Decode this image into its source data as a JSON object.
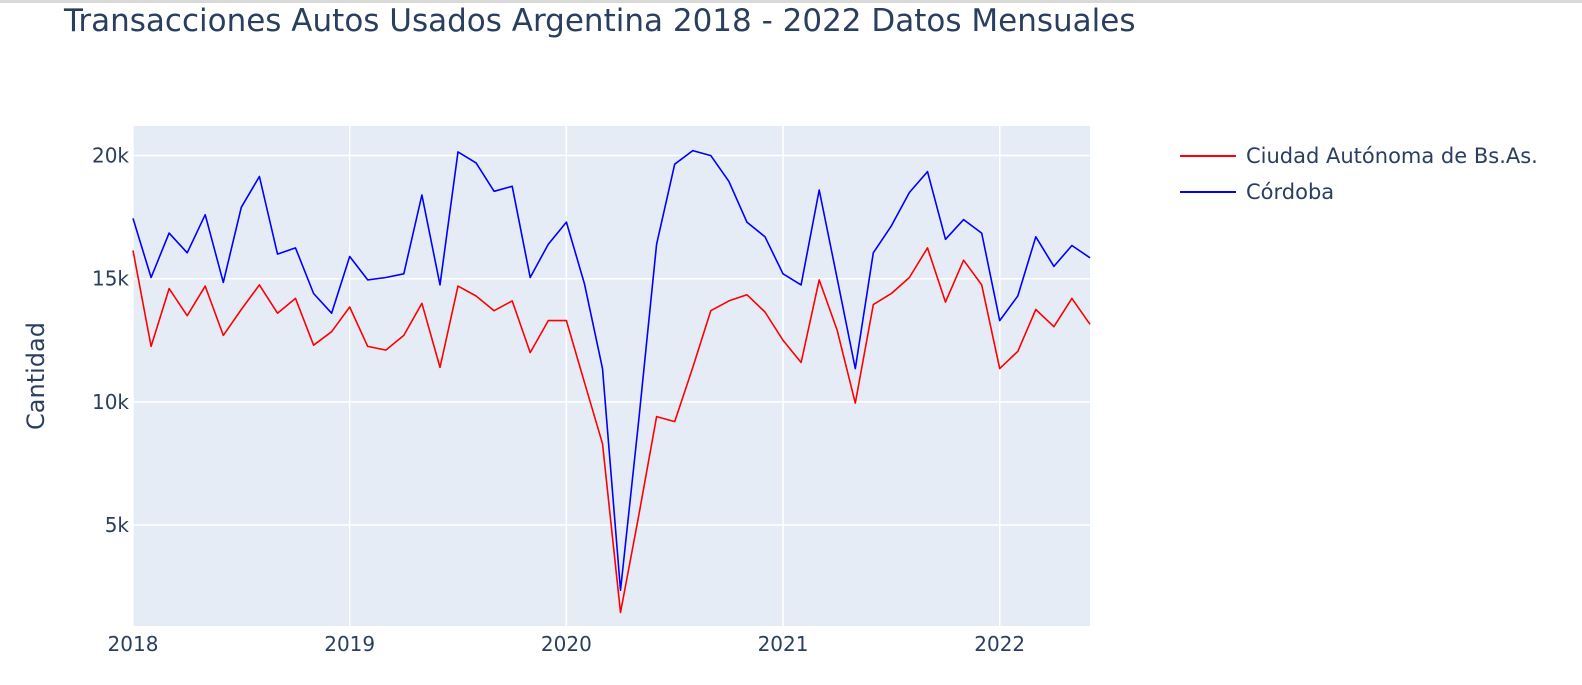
{
  "chart_data": {
    "type": "line",
    "title": "Transacciones Autos Usados Argentina 2018 - 2022 Datos Mensuales",
    "xlabel": "",
    "ylabel": "Cantidad",
    "x_range": [
      "2018-01",
      "2022-06"
    ],
    "ylim": [
      900,
      21200
    ],
    "grid": true,
    "legend_position": "right",
    "plot_background": "#e5ecf6",
    "grid_color": "#ffffff",
    "text_color": "#2a3f5f",
    "x_ticks": [
      {
        "value": "2018-01",
        "label": "2018"
      },
      {
        "value": "2019-01",
        "label": "2019"
      },
      {
        "value": "2020-01",
        "label": "2020"
      },
      {
        "value": "2021-01",
        "label": "2021"
      },
      {
        "value": "2022-01",
        "label": "2022"
      }
    ],
    "y_ticks": [
      {
        "value": 5000,
        "label": "5k"
      },
      {
        "value": 10000,
        "label": "10k"
      },
      {
        "value": 15000,
        "label": "15k"
      },
      {
        "value": 20000,
        "label": "20k"
      }
    ],
    "x": [
      "2018-01",
      "2018-02",
      "2018-03",
      "2018-04",
      "2018-05",
      "2018-06",
      "2018-07",
      "2018-08",
      "2018-09",
      "2018-10",
      "2018-11",
      "2018-12",
      "2019-01",
      "2019-02",
      "2019-03",
      "2019-04",
      "2019-05",
      "2019-06",
      "2019-07",
      "2019-08",
      "2019-09",
      "2019-10",
      "2019-11",
      "2019-12",
      "2020-01",
      "2020-02",
      "2020-03",
      "2020-04",
      "2020-05",
      "2020-06",
      "2020-07",
      "2020-08",
      "2020-09",
      "2020-10",
      "2020-11",
      "2020-12",
      "2021-01",
      "2021-02",
      "2021-03",
      "2021-04",
      "2021-05",
      "2021-06",
      "2021-07",
      "2021-08",
      "2021-09",
      "2021-10",
      "2021-11",
      "2021-12",
      "2022-01",
      "2022-02",
      "2022-03",
      "2022-04",
      "2022-05",
      "2022-06"
    ],
    "series": [
      {
        "name": "Ciudad Autónoma de Bs.As.",
        "color": "#ff0000",
        "values": [
          16150,
          12250,
          14600,
          13500,
          14700,
          12700,
          13750,
          14750,
          13600,
          14200,
          12300,
          12850,
          13850,
          12250,
          12100,
          12700,
          14000,
          11400,
          14700,
          14300,
          13700,
          14100,
          12000,
          13300,
          13300,
          10800,
          8300,
          1450,
          5350,
          9400,
          9200,
          11400,
          13700,
          14100,
          14350,
          13650,
          12500,
          11600,
          14950,
          12900,
          9950,
          13950,
          14400,
          15050,
          16250,
          14050,
          15750,
          14750,
          11350,
          12050,
          13750,
          13050,
          14200,
          13150
        ]
      },
      {
        "name": "Córdoba",
        "color": "#0000ff",
        "values": [
          17450,
          15050,
          16850,
          16050,
          17600,
          14850,
          17900,
          19150,
          16000,
          16250,
          14400,
          13600,
          15900,
          14950,
          15050,
          15200,
          18400,
          14750,
          20150,
          19700,
          18550,
          18750,
          15050,
          16400,
          17300,
          14800,
          11350,
          2350,
          9200,
          16400,
          19650,
          20200,
          20000,
          18950,
          17300,
          16700,
          15200,
          14750,
          18600,
          15000,
          11350,
          16050,
          17150,
          18500,
          19350,
          16600,
          17400,
          16850,
          13300,
          14300,
          16700,
          15500,
          16350,
          15850
        ]
      }
    ]
  }
}
